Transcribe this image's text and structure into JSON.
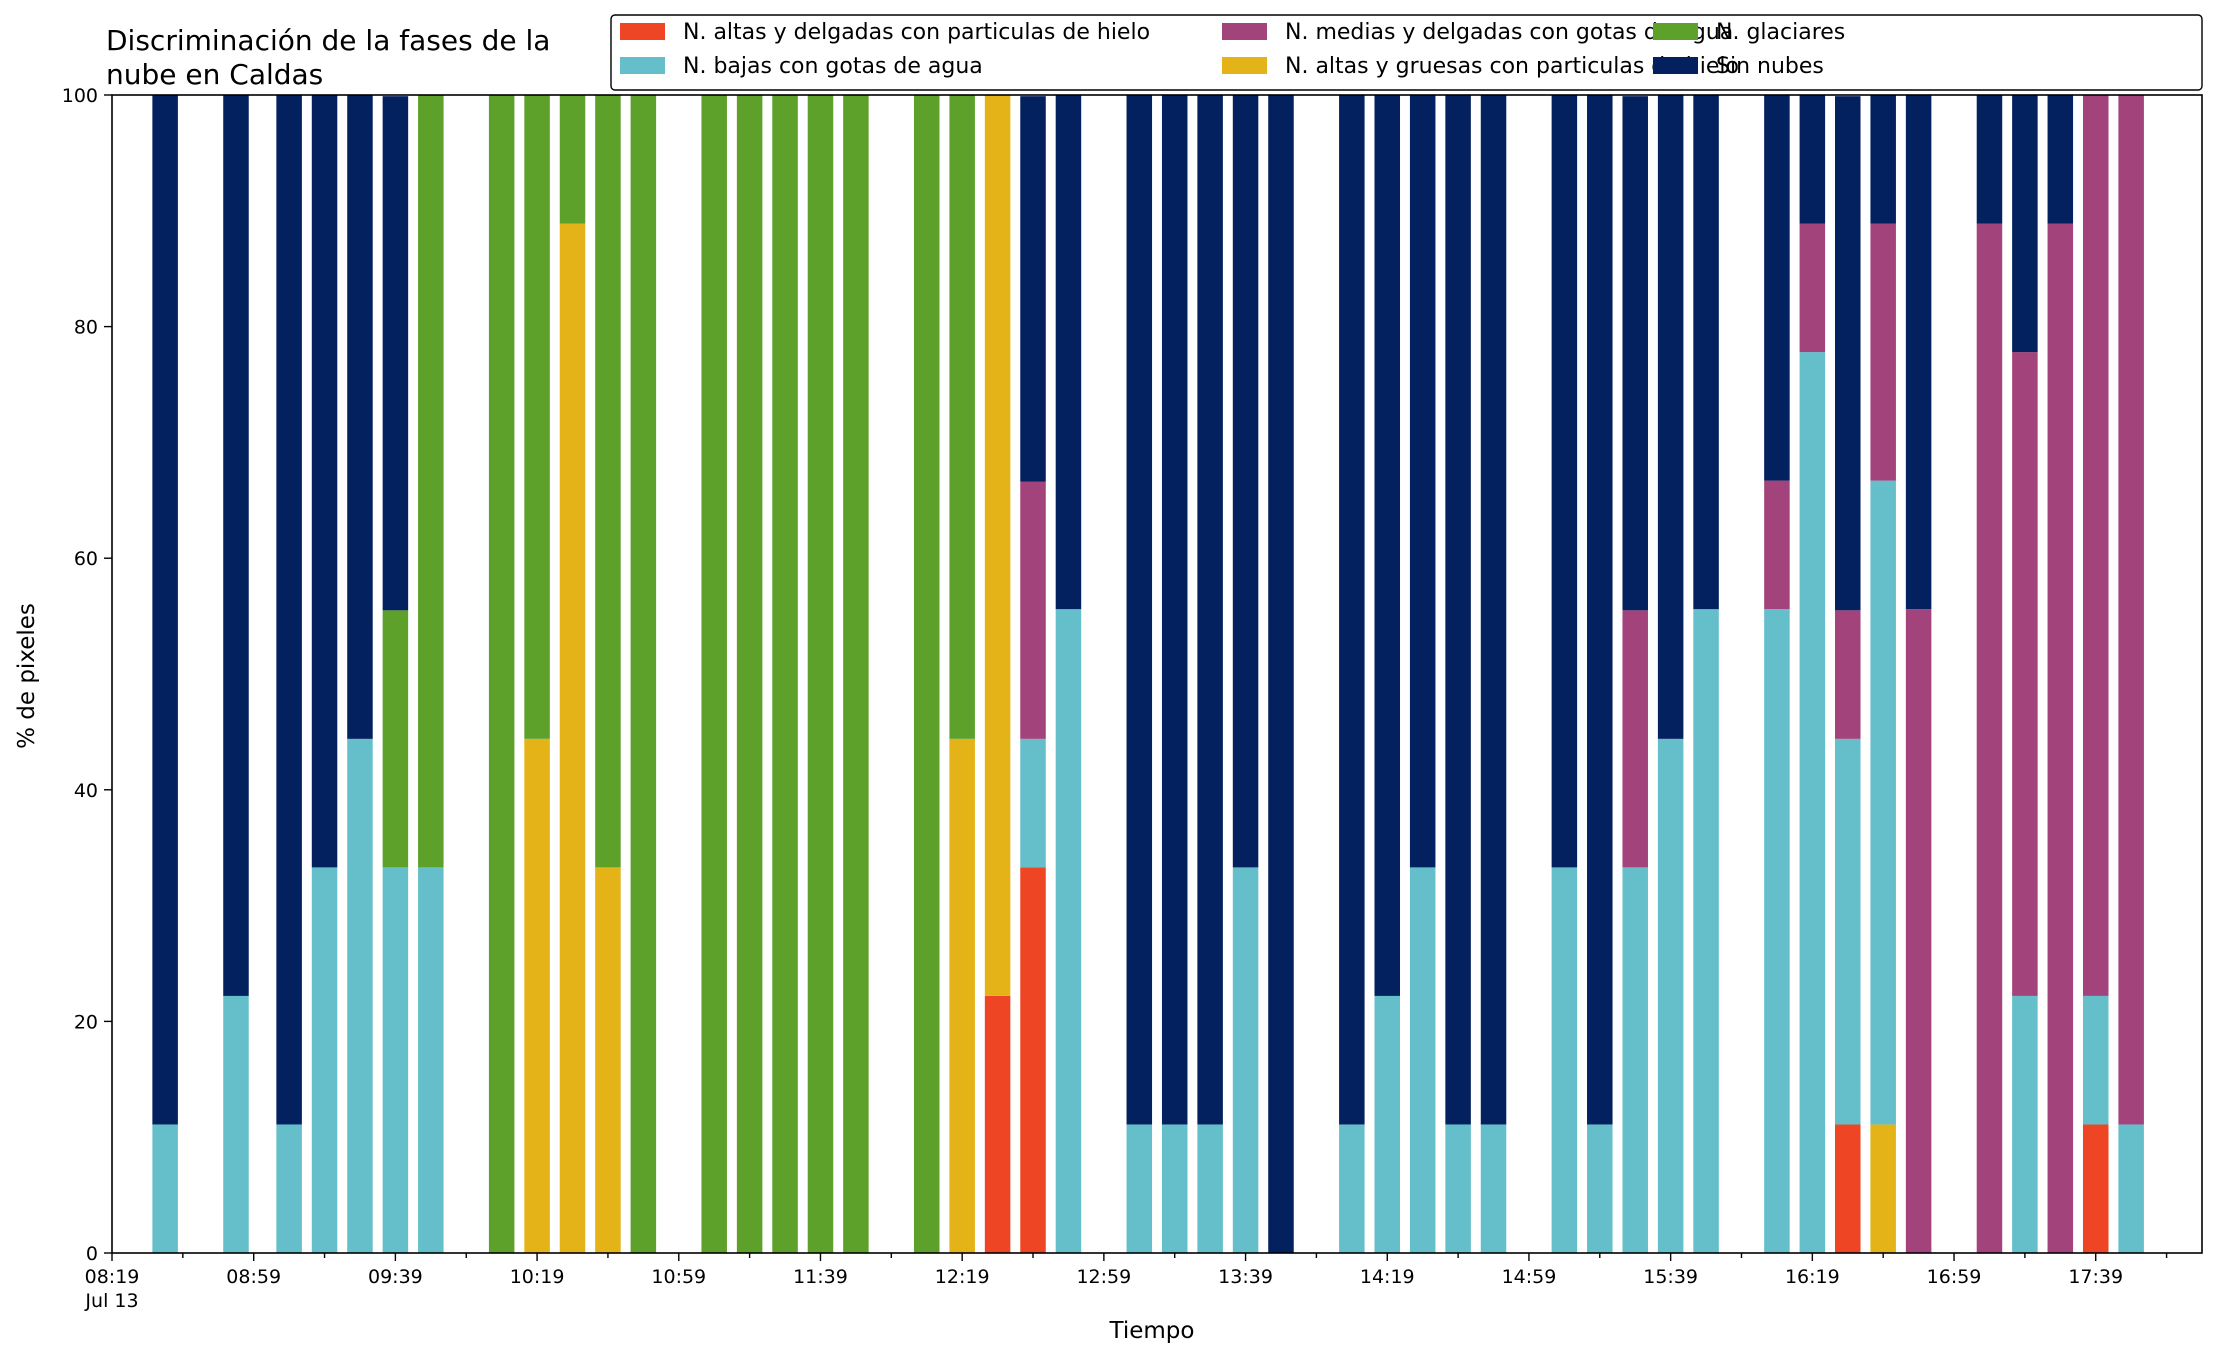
{
  "chart_data": {
    "type": "bar",
    "stacked": true,
    "title_lines": [
      "Discriminación de la fases de la",
      "nube en Caldas"
    ],
    "xlabel": "Tiempo",
    "ylabel": "% de pixeles",
    "ylim": [
      0,
      100
    ],
    "xlim": [
      "08:19",
      "18:09"
    ],
    "y_ticks": [
      0,
      20,
      40,
      60,
      80,
      100
    ],
    "x_tick_labels": [
      "08:19",
      "08:59",
      "09:39",
      "10:19",
      "10:59",
      "11:39",
      "12:19",
      "12:59",
      "13:39",
      "14:19",
      "14:59",
      "15:39",
      "16:19",
      "16:59",
      "17:39"
    ],
    "x_tick_sublabel": "Jul 13",
    "x_minor_tick_step_minutes": 20,
    "bar_width_minutes": 7.2,
    "grid": false,
    "legend_position": "top-right",
    "legend_order": [
      "N. altas y delgadas con particulas de hielo",
      "N. bajas con gotas de agua",
      "N. medias y delgadas con gotas de agua",
      "N. altas y gruesas con particulas de hielo",
      "N. glaciares",
      "Sin nubes"
    ],
    "series": [
      {
        "name": "N. altas y delgadas con particulas de hielo",
        "color": "#ee4524"
      },
      {
        "name": "N. altas y gruesas con particulas de hielo",
        "color": "#e4b317"
      },
      {
        "name": "N. bajas con gotas de agua",
        "color": "#65bfcb"
      },
      {
        "name": "N. glaciares",
        "color": "#5ea12a"
      },
      {
        "name": "N. medias y delgadas con gotas de agua",
        "color": "#a2447b"
      },
      {
        "name": "Sin nubes",
        "color": "#03205f"
      }
    ],
    "x": [
      "08:34",
      "08:54",
      "09:09",
      "09:19",
      "09:29",
      "09:39",
      "09:49",
      "10:09",
      "10:19",
      "10:29",
      "10:39",
      "10:49",
      "11:09",
      "11:19",
      "11:29",
      "11:39",
      "11:49",
      "12:09",
      "12:19",
      "12:29",
      "12:39",
      "12:49",
      "13:09",
      "13:19",
      "13:29",
      "13:39",
      "13:49",
      "14:09",
      "14:19",
      "14:29",
      "14:39",
      "14:49",
      "15:09",
      "15:19",
      "15:29",
      "15:39",
      "15:49",
      "16:09",
      "16:19",
      "16:29",
      "16:39",
      "16:49",
      "17:09",
      "17:19",
      "17:29",
      "17:39",
      "17:49"
    ],
    "values": {
      "N. altas y delgadas con particulas de hielo": [
        0,
        0,
        0,
        0,
        0,
        0,
        0,
        0,
        0,
        0,
        0,
        0,
        0,
        0,
        0,
        0,
        0,
        0,
        0,
        22.2,
        33.3,
        0,
        0,
        0,
        0,
        0,
        0,
        0,
        0,
        0,
        0,
        0,
        0,
        0,
        0,
        0,
        0,
        0,
        0,
        11.1,
        0,
        0,
        0,
        0,
        0,
        11.1,
        0
      ],
      "N. altas y gruesas con particulas de hielo": [
        0,
        0,
        0,
        0,
        0,
        0,
        0,
        0,
        44.4,
        88.9,
        33.3,
        0,
        0,
        0,
        0,
        0,
        0,
        0,
        44.4,
        77.8,
        0,
        0,
        0,
        0,
        0,
        0,
        0,
        0,
        0,
        0,
        0,
        0,
        0,
        0,
        0,
        0,
        0,
        0,
        0,
        0,
        11.1,
        0,
        0,
        0,
        0,
        0,
        0
      ],
      "N. bajas con gotas de agua": [
        11.1,
        22.2,
        11.1,
        33.3,
        44.4,
        33.3,
        33.3,
        0,
        0,
        0,
        0,
        0,
        0,
        0,
        0,
        0,
        0,
        0,
        0,
        0,
        11.1,
        55.6,
        11.1,
        11.1,
        11.1,
        33.3,
        0,
        11.1,
        22.2,
        33.3,
        11.1,
        11.1,
        33.3,
        11.1,
        33.3,
        44.4,
        55.6,
        55.6,
        77.8,
        33.3,
        55.6,
        0,
        0,
        22.2,
        0,
        11.1,
        11.1
      ],
      "N. glaciares": [
        0,
        0,
        0,
        0,
        0,
        22.2,
        66.7,
        100,
        55.6,
        11.1,
        66.7,
        100,
        100,
        100,
        100,
        100,
        100,
        100,
        55.6,
        0,
        0,
        0,
        0,
        0,
        0,
        0,
        0,
        0,
        0,
        0,
        0,
        0,
        0,
        0,
        0,
        0,
        0,
        0,
        0,
        0,
        0,
        0,
        0,
        0,
        0,
        0,
        0
      ],
      "N. medias y delgadas con gotas de agua": [
        0,
        0,
        0,
        0,
        0,
        0,
        0,
        0,
        0,
        0,
        0,
        0,
        0,
        0,
        0,
        0,
        0,
        0,
        0,
        0,
        22.2,
        0,
        0,
        0,
        0,
        0,
        0,
        0,
        0,
        0,
        0,
        0,
        0,
        0,
        22.2,
        0,
        0,
        11.1,
        11.1,
        11.1,
        22.2,
        55.6,
        88.9,
        55.6,
        88.9,
        77.8,
        88.9
      ],
      "Sin nubes": [
        88.9,
        77.8,
        88.9,
        66.7,
        55.6,
        44.4,
        0,
        0,
        0,
        0,
        0,
        0,
        0,
        0,
        0,
        0,
        0,
        0,
        0,
        0,
        33.3,
        44.4,
        88.9,
        88.9,
        88.9,
        66.7,
        100,
        88.9,
        77.8,
        66.7,
        88.9,
        88.9,
        66.7,
        88.9,
        44.4,
        55.6,
        44.4,
        33.3,
        11.1,
        44.4,
        11.1,
        44.4,
        11.1,
        22.2,
        11.1,
        0,
        0
      ]
    }
  }
}
